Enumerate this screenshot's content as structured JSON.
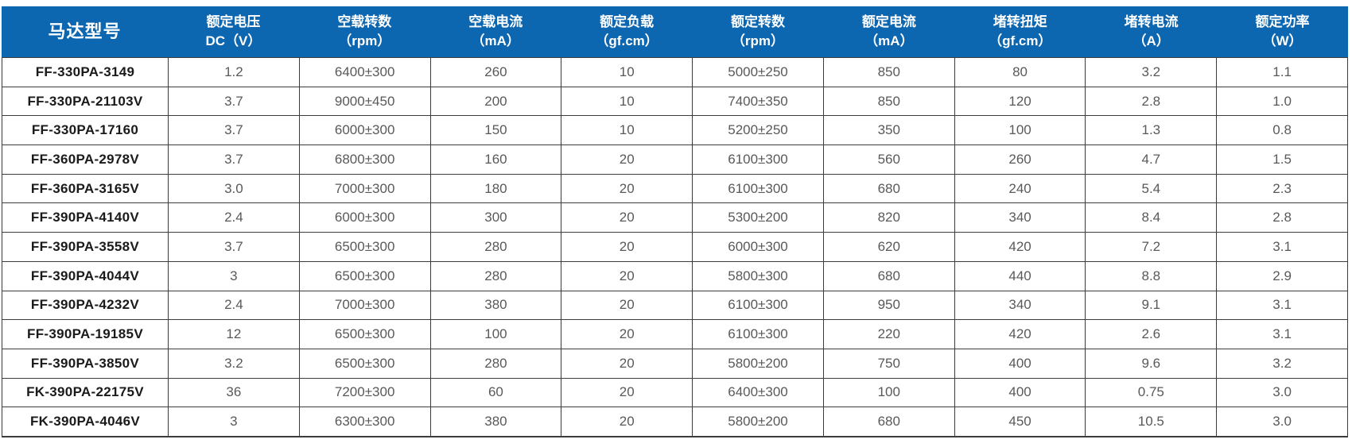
{
  "colors": {
    "header_bg": "#0d66b0",
    "header_text": "#ffffff",
    "model_text": "#1a1a1a",
    "value_text": "#595959",
    "border": "#3c3c3c"
  },
  "chart_data": {
    "type": "table",
    "header": {
      "model": "马达型号",
      "columns": [
        {
          "line1": "额定电压",
          "line2": "DC（V）"
        },
        {
          "line1": "空载转数",
          "line2": "（rpm）"
        },
        {
          "line1": "空载电流",
          "line2": "（mA）"
        },
        {
          "line1": "额定负载",
          "line2": "（gf.cm）"
        },
        {
          "line1": "额定转数",
          "line2": "（rpm）"
        },
        {
          "line1": "额定电流",
          "line2": "（mA）"
        },
        {
          "line1": "堵转扭矩",
          "line2": "（gf.cm）"
        },
        {
          "line1": "堵转电流",
          "line2": "（A）"
        },
        {
          "line1": "额定功率",
          "line2": "（W）"
        }
      ]
    },
    "rows": [
      {
        "model": "FF-330PA-3149",
        "values": [
          "1.2",
          "6400±300",
          "260",
          "10",
          "5000±250",
          "850",
          "80",
          "3.2",
          "1.1"
        ]
      },
      {
        "model": "FF-330PA-21103V",
        "values": [
          "3.7",
          "9000±450",
          "200",
          "10",
          "7400±350",
          "850",
          "120",
          "2.8",
          "1.0"
        ]
      },
      {
        "model": "FF-330PA-17160",
        "values": [
          "3.7",
          "6000±300",
          "150",
          "10",
          "5200±250",
          "350",
          "100",
          "1.3",
          "0.8"
        ]
      },
      {
        "model": "FF-360PA-2978V",
        "values": [
          "3.7",
          "6800±300",
          "160",
          "20",
          "6100±300",
          "560",
          "260",
          "4.7",
          "1.5"
        ]
      },
      {
        "model": "FF-360PA-3165V",
        "values": [
          "3.0",
          "7000±300",
          "180",
          "20",
          "6100±300",
          "680",
          "240",
          "5.4",
          "2.3"
        ]
      },
      {
        "model": "FF-390PA-4140V",
        "values": [
          "2.4",
          "6000±300",
          "300",
          "20",
          "5300±200",
          "820",
          "340",
          "8.4",
          "2.8"
        ]
      },
      {
        "model": "FF-390PA-3558V",
        "values": [
          "3.7",
          "6500±300",
          "280",
          "20",
          "6000±300",
          "620",
          "420",
          "7.2",
          "3.1"
        ]
      },
      {
        "model": "FF-390PA-4044V",
        "values": [
          "3",
          "6500±300",
          "280",
          "20",
          "5800±300",
          "680",
          "440",
          "8.8",
          "2.9"
        ]
      },
      {
        "model": "FF-390PA-4232V",
        "values": [
          "2.4",
          "7000±300",
          "380",
          "20",
          "6100±300",
          "950",
          "340",
          "9.1",
          "3.1"
        ]
      },
      {
        "model": "FF-390PA-19185V",
        "values": [
          "12",
          "6500±300",
          "100",
          "20",
          "6100±300",
          "220",
          "420",
          "2.6",
          "3.1"
        ]
      },
      {
        "model": "FF-390PA-3850V",
        "values": [
          "3.2",
          "6500±300",
          "280",
          "20",
          "5800±200",
          "750",
          "400",
          "9.6",
          "3.2"
        ]
      },
      {
        "model": "FK-390PA-22175V",
        "values": [
          "36",
          "7200±300",
          "60",
          "20",
          "6400±300",
          "100",
          "400",
          "0.75",
          "3.0"
        ]
      },
      {
        "model": "FK-390PA-4046V",
        "values": [
          "3",
          "6300±300",
          "380",
          "20",
          "5800±200",
          "680",
          "450",
          "10.5",
          "3.0"
        ]
      }
    ]
  }
}
